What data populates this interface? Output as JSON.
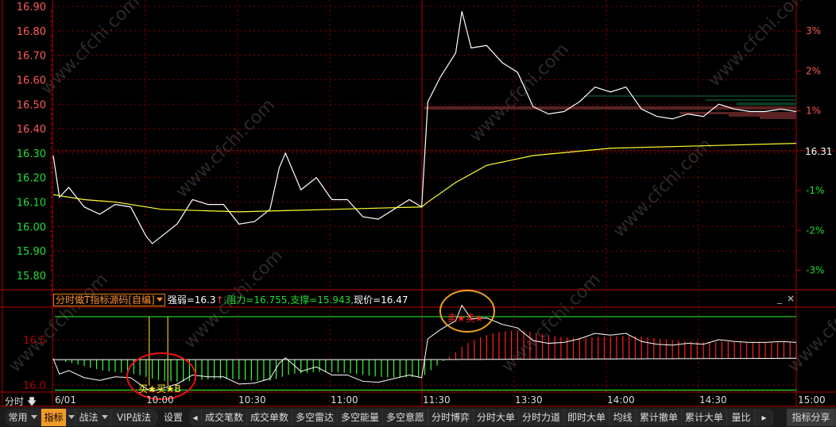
{
  "main_chart": {
    "y_axis_labels": [
      "16.90",
      "16.80",
      "16.70",
      "16.60",
      "16.50",
      "16.40",
      "16.30",
      "16.20",
      "16.10",
      "16.00",
      "15.90",
      "15.80"
    ],
    "y_axis_values": [
      16.9,
      16.8,
      16.7,
      16.6,
      16.5,
      16.4,
      16.3,
      16.2,
      16.1,
      16.0,
      15.9,
      15.8
    ],
    "prev_close": 16.31,
    "prev_close_label": "16.31",
    "pct_labels": [
      "3%",
      "2%",
      "1%",
      "-1%",
      "-2%",
      "-3%"
    ],
    "pct_values": [
      3,
      2,
      1,
      -1,
      -2,
      -3
    ],
    "colors": {
      "up": "#ff5a5a",
      "down": "#22dd33",
      "price": "#ffffff",
      "avg": "#ffff33",
      "grid": "#8a0000"
    },
    "price_minutes": [
      0,
      2,
      5,
      10,
      15,
      20,
      25,
      30,
      32,
      35,
      40,
      45,
      50,
      55,
      60,
      65,
      70,
      73,
      75,
      80,
      85,
      90,
      95,
      100,
      105,
      110,
      115,
      119,
      121,
      125,
      130,
      132,
      135,
      140,
      145,
      150,
      155,
      160,
      165,
      170,
      175,
      180,
      185,
      190,
      195,
      200,
      205,
      210,
      215,
      220,
      225,
      230,
      235,
      240
    ],
    "price": [
      16.29,
      16.12,
      16.16,
      16.08,
      16.05,
      16.09,
      16.08,
      15.96,
      15.93,
      15.96,
      16.01,
      16.11,
      16.09,
      16.09,
      16.01,
      16.02,
      16.07,
      16.24,
      16.3,
      16.15,
      16.2,
      16.11,
      16.11,
      16.04,
      16.03,
      16.07,
      16.11,
      16.08,
      16.51,
      16.61,
      16.71,
      16.88,
      16.73,
      16.74,
      16.67,
      16.63,
      16.49,
      16.46,
      16.47,
      16.51,
      16.57,
      16.55,
      16.57,
      16.48,
      16.45,
      16.44,
      16.46,
      16.45,
      16.5,
      16.48,
      16.47,
      16.47,
      16.48,
      16.47
    ],
    "avg_minutes": [
      0,
      10,
      20,
      35,
      60,
      90,
      119,
      121,
      130,
      140,
      155,
      180,
      210,
      240
    ],
    "avg": [
      16.13,
      16.11,
      16.1,
      16.07,
      16.06,
      16.07,
      16.08,
      16.1,
      16.18,
      16.25,
      16.29,
      16.32,
      16.33,
      16.34
    ]
  },
  "indicator": {
    "name": "分时做T指标源码[自编]",
    "strength_label": "强弱=16.3",
    "strength_arrow": "↑",
    "resist_support_label": ",阻力=16.755,支撑=15.943,",
    "price_label": "现价=16.47",
    "strength": 16.3,
    "resistance": 16.755,
    "support": 15.943,
    "y_axis_labels": [
      "16.5",
      "16.0"
    ],
    "y_axis_values": [
      16.5,
      16.0
    ],
    "buy_signal_minutes": [
      31,
      37
    ],
    "buy_text": "买★买★B",
    "sell_text": "卖★卖★",
    "minimize_label": "_",
    "close_label": "×"
  },
  "time_axis": {
    "period_label": "分时",
    "labels": [
      "6/01",
      "10:00",
      "10:30",
      "11:00",
      "11:30",
      "13:30",
      "14:00",
      "14:30",
      "15:00"
    ]
  },
  "watermark": "www.cfchi.com",
  "toolbar": {
    "left": [
      {
        "label": "常用",
        "dropdown": true
      },
      {
        "label": "指标",
        "dropdown": true,
        "active": true
      },
      {
        "label": "战法",
        "dropdown": true
      },
      {
        "label": "VIP战法"
      }
    ],
    "settings": "设置",
    "tabs": [
      "成交笔数",
      "成交单数",
      "多空雷达",
      "多空能量",
      "多空意愿",
      "分时博弈",
      "分时大单",
      "分时力道",
      "即时大单",
      "均线",
      "累计撤单",
      "累计大单",
      "量比"
    ],
    "share": "指标分享"
  }
}
